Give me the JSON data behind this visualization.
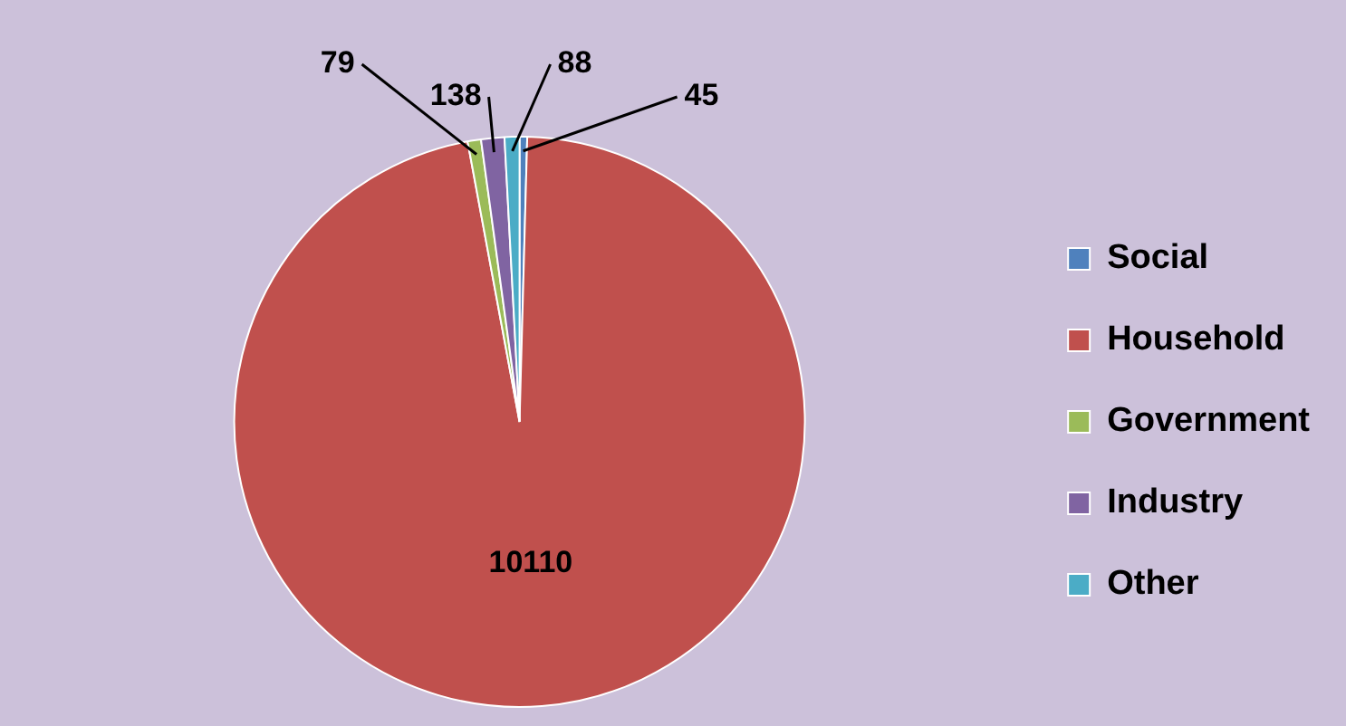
{
  "chart_data": {
    "type": "pie",
    "categories": [
      "Social",
      "Household",
      "Government",
      "Industry",
      "Other"
    ],
    "values": [
      45,
      10110,
      79,
      138,
      88
    ],
    "colors": [
      "#4f81bd",
      "#c0504d",
      "#9bbb59",
      "#8064a2",
      "#4bacc6"
    ],
    "data_labels": true,
    "legend": "right"
  }
}
